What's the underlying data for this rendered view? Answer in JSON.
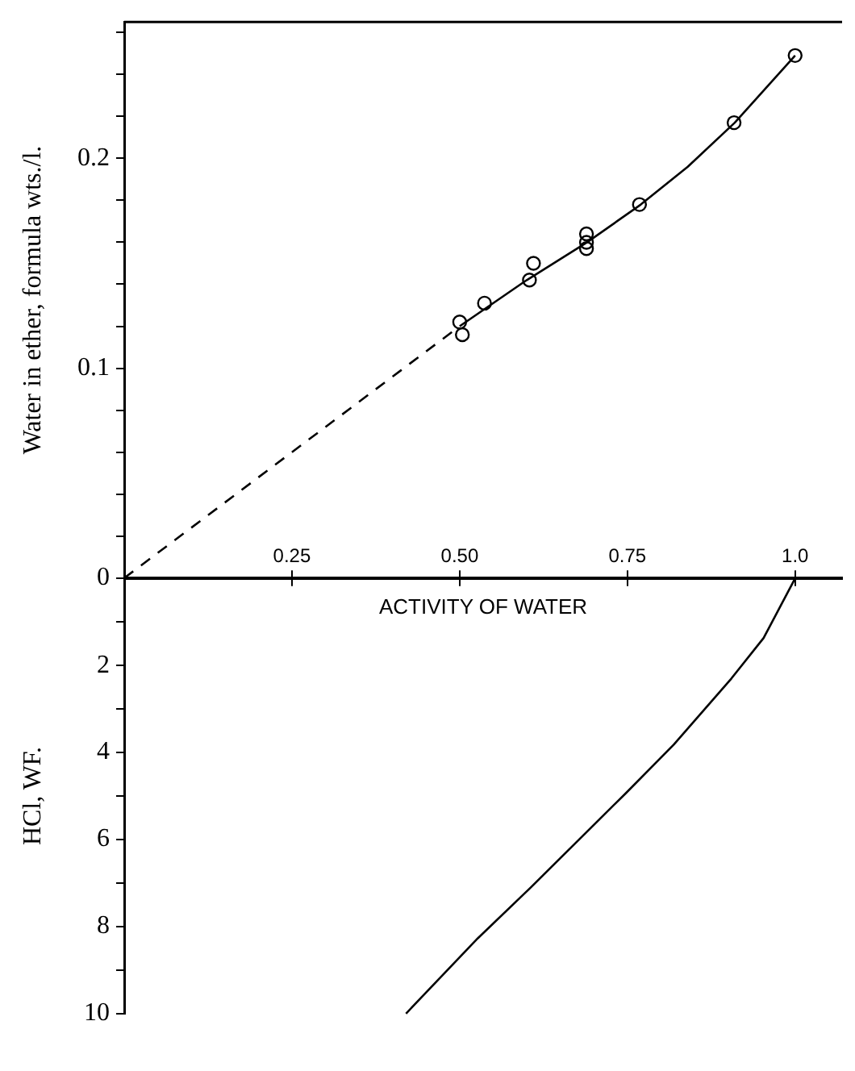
{
  "chart_data": [
    {
      "type": "scatter",
      "ylabel": "Water in ether, formula wts./l.",
      "xlim": [
        0,
        1.07
      ],
      "xticks": [
        0.25,
        {
          "value": 0.5,
          "label": "0.50"
        },
        0.75,
        {
          "value": 1,
          "label": "1.0"
        }
      ],
      "ylim": [
        0,
        0.265
      ],
      "yticks": [
        0,
        {
          "value": 0.02,
          "label": null
        },
        {
          "value": 0.04,
          "label": null
        },
        {
          "value": 0.06,
          "label": null
        },
        {
          "value": 0.08,
          "label": null
        },
        0.1,
        {
          "value": 0.12,
          "label": null
        },
        {
          "value": 0.14,
          "label": null
        },
        {
          "value": 0.16,
          "label": null
        },
        {
          "value": 0.18,
          "label": null
        },
        0.2,
        {
          "value": 0.22,
          "label": null
        },
        {
          "value": 0.24,
          "label": null
        },
        {
          "value": 0.26,
          "label": null
        }
      ],
      "series": [
        {
          "color": "#000000",
          "marker": "circle",
          "x": [
            1.0,
            0.909,
            0.768,
            0.689,
            0.689,
            0.689,
            0.61,
            0.604,
            0.537,
            0.5,
            0.504
          ],
          "values": [
            0.249,
            0.217,
            0.178,
            0.164,
            0.16,
            0.157,
            0.15,
            0.142,
            0.131,
            0.122,
            0.116
          ]
        },
        {
          "type": "line",
          "color": "#000000",
          "marker": "none",
          "line_style": "solid",
          "x": [
            0.5,
            0.6,
            0.69,
            0.77,
            0.84,
            0.91,
            1.0
          ],
          "values": [
            0.12,
            0.142,
            0.16,
            0.178,
            0.196,
            0.217,
            0.249
          ]
        },
        {
          "type": "line",
          "color": "#000000",
          "marker": "none",
          "line_style": "dashed",
          "x": [
            0,
            0.5
          ],
          "values": [
            0,
            0.12
          ]
        }
      ]
    },
    {
      "type": "line",
      "xlabel": "ACTIVITY OF WATER",
      "ylabel": "HCl, WF.",
      "tick_labels": "y",
      "xlim": [
        0,
        1.07
      ],
      "xticks": [
        0.25,
        0.5,
        0.75,
        1.0
      ],
      "ylim": [
        10,
        0
      ],
      "yticks": [
        {
          "value": 0,
          "label": null
        },
        {
          "value": 1,
          "label": null
        },
        2,
        {
          "value": 3,
          "label": null
        },
        4,
        {
          "value": 5,
          "label": null
        },
        6,
        {
          "value": 7,
          "label": null
        },
        8,
        {
          "value": 9,
          "label": null
        },
        10
      ],
      "series": [
        {
          "color": "#000000",
          "marker": "none",
          "line_style": "solid",
          "x": [
            0.42,
            0.527,
            0.606,
            0.748,
            0.819,
            0.905,
            0.953,
            1.0
          ],
          "values": [
            10,
            8.27,
            7.1,
            4.93,
            3.82,
            2.3,
            1.37,
            0
          ]
        }
      ]
    }
  ]
}
